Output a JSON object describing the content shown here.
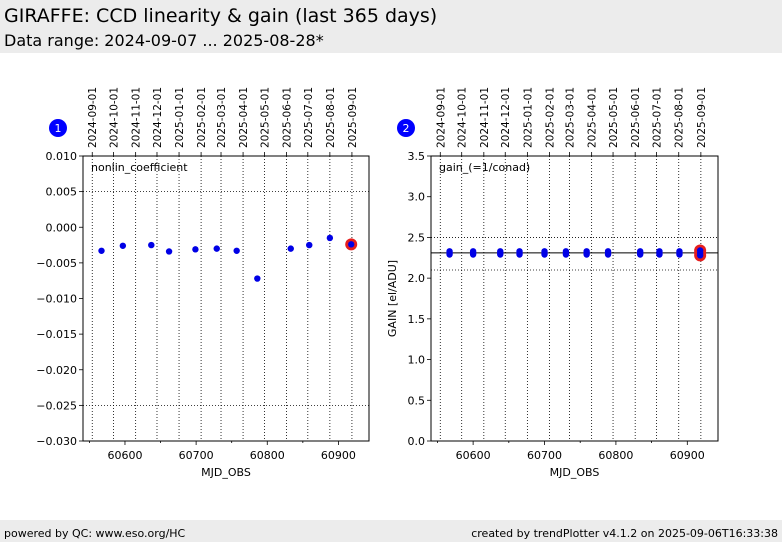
{
  "header": {
    "title": "GIRAFFE: CCD linearity & gain (last 365 days)",
    "subtitle": "Data range: 2024-09-07 ... 2025-08-28*"
  },
  "footer": {
    "left": "powered by QC: www.eso.org/HC",
    "right": "created by trendPlotter v4.1.2 on 2025-09-06T16:33:38"
  },
  "colors": {
    "point": "#0000e6",
    "highlight": "#e61e1e",
    "background": "#ececec",
    "badge": "#0000ff"
  },
  "chart_data": [
    {
      "type": "scatter",
      "panel_number": "1",
      "annotation": "nonlin_coefficient",
      "xlabel": "MJD_OBS",
      "ylabel": "",
      "xlim": [
        60541,
        60943
      ],
      "ylim": [
        -0.03,
        0.01
      ],
      "x_ticks": [
        60600,
        60700,
        60800,
        60900
      ],
      "x_tick_labels": [
        "60600",
        "60700",
        "60800",
        "60900"
      ],
      "y_ticks": [
        -0.03,
        -0.025,
        -0.02,
        -0.015,
        -0.01,
        -0.005,
        0.0,
        0.005,
        0.01
      ],
      "y_tick_labels": [
        "−0.030",
        "−0.025",
        "−0.020",
        "−0.015",
        "−0.010",
        "−0.005",
        "0.000",
        "0.005",
        "0.010"
      ],
      "top_date_ticks": [
        60554,
        60584,
        60615,
        60645,
        60676,
        60707,
        60735,
        60766,
        60796,
        60827,
        60857,
        60888,
        60919
      ],
      "top_date_labels": [
        "2024-09-01",
        "2024-10-01",
        "2024-11-01",
        "2024-12-01",
        "2025-01-01",
        "2025-02-01",
        "2025-03-01",
        "2025-04-01",
        "2025-05-01",
        "2025-06-01",
        "2025-07-01",
        "2025-08-01",
        "2025-09-01"
      ],
      "grid": "dotted at date ticks",
      "threshold_lines": [
        0.005,
        -0.025
      ],
      "points": [
        {
          "x": 60567,
          "y": -0.0033
        },
        {
          "x": 60597,
          "y": -0.0026
        },
        {
          "x": 60637,
          "y": -0.0025
        },
        {
          "x": 60662,
          "y": -0.0034
        },
        {
          "x": 60699,
          "y": -0.0031
        },
        {
          "x": 60729,
          "y": -0.003
        },
        {
          "x": 60757,
          "y": -0.0033
        },
        {
          "x": 60786,
          "y": -0.0072
        },
        {
          "x": 60833,
          "y": -0.003
        },
        {
          "x": 60859,
          "y": -0.0025
        },
        {
          "x": 60888,
          "y": -0.0015
        }
      ],
      "latest_point": {
        "x": 60918,
        "y": -0.0024
      }
    },
    {
      "type": "scatter",
      "panel_number": "2",
      "annotation": "gain_(=1/conad)",
      "xlabel": "MJD_OBS",
      "ylabel": "GAIN [el/ADU]",
      "xlim": [
        60541,
        60943
      ],
      "ylim": [
        0.0,
        3.5
      ],
      "x_ticks": [
        60600,
        60700,
        60800,
        60900
      ],
      "x_tick_labels": [
        "60600",
        "60700",
        "60800",
        "60900"
      ],
      "y_ticks": [
        0.0,
        0.5,
        1.0,
        1.5,
        2.0,
        2.5,
        3.0,
        3.5
      ],
      "y_tick_labels": [
        "0.0",
        "0.5",
        "1.0",
        "1.5",
        "2.0",
        "2.5",
        "3.0",
        "3.5"
      ],
      "top_date_ticks": [
        60554,
        60584,
        60615,
        60645,
        60676,
        60707,
        60735,
        60766,
        60796,
        60827,
        60857,
        60888,
        60919
      ],
      "top_date_labels": [
        "2024-09-01",
        "2024-10-01",
        "2024-11-01",
        "2024-12-01",
        "2025-01-01",
        "2025-02-01",
        "2025-03-01",
        "2025-04-01",
        "2025-05-01",
        "2025-06-01",
        "2025-07-01",
        "2025-08-01",
        "2025-09-01"
      ],
      "grid": "dotted at date ticks",
      "reference_line": 2.31,
      "threshold_lines": [
        2.1,
        2.5
      ],
      "points": [
        {
          "x": 60567,
          "y": [
            2.29,
            2.31,
            2.33
          ]
        },
        {
          "x": 60600,
          "y": [
            2.29,
            2.31,
            2.33
          ]
        },
        {
          "x": 60638,
          "y": [
            2.29,
            2.31,
            2.33
          ]
        },
        {
          "x": 60665,
          "y": [
            2.29,
            2.31,
            2.33
          ]
        },
        {
          "x": 60700,
          "y": [
            2.29,
            2.31,
            2.33
          ]
        },
        {
          "x": 60730,
          "y": [
            2.29,
            2.31,
            2.33
          ]
        },
        {
          "x": 60759,
          "y": [
            2.29,
            2.31,
            2.33
          ]
        },
        {
          "x": 60789,
          "y": [
            2.29,
            2.31,
            2.33
          ]
        },
        {
          "x": 60834,
          "y": [
            2.29,
            2.31,
            2.33
          ]
        },
        {
          "x": 60861,
          "y": [
            2.29,
            2.31,
            2.33
          ]
        },
        {
          "x": 60889,
          "y": [
            2.29,
            2.31,
            2.33
          ]
        }
      ],
      "latest_point": {
        "x": 60918,
        "y": [
          2.28,
          2.31,
          2.34
        ]
      }
    }
  ]
}
